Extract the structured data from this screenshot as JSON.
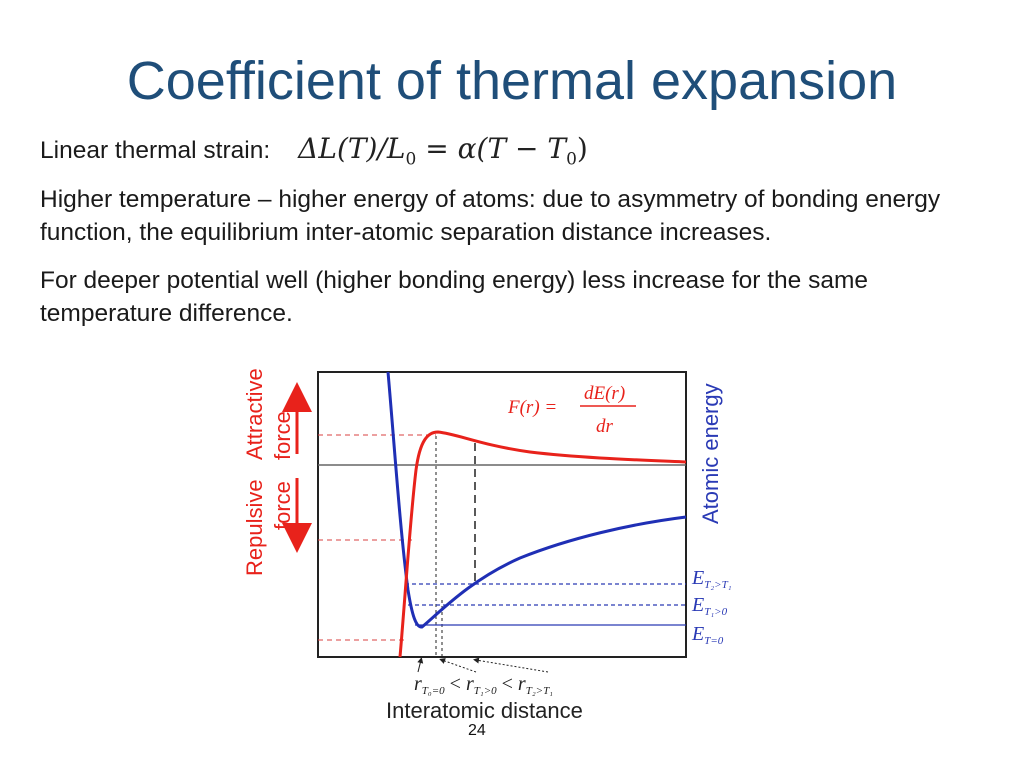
{
  "slide": {
    "title": "Coefficient of thermal expansion",
    "strain_label": "Linear thermal strain:",
    "formula": {
      "lhs": "ΔL(T)/L",
      "lhs_sub": "0",
      "rhs": "= α(T − T",
      "rhs_sub": "0",
      "rhs_end": ")"
    },
    "paragraph_2": "Higher temperature – higher energy of atoms: due to asymmetry of  bonding energy function, the equilibrium inter-atomic separation distance increases.",
    "paragraph_3": "For deeper potential well (higher bonding energy) less increase for the same temperature difference.",
    "page_number": "24"
  },
  "diagram": {
    "left_axis": {
      "attractive": "Attractive",
      "force_top": "force",
      "repulsive": "Repulsive",
      "force_bottom": "force"
    },
    "right_axis_label": "Atomic energy",
    "force_equation": {
      "lhs": "F(r) =",
      "numerator": "dE(r)",
      "denominator": "dr"
    },
    "energy_levels": [
      {
        "main": "E",
        "sub": "T₂>T₁"
      },
      {
        "main": "E",
        "sub": "T₁>0"
      },
      {
        "main": "E",
        "sub": "T=0"
      }
    ],
    "distance_inequality": {
      "r0": "r",
      "r0_sub": "T₀=0",
      "lt1": "<",
      "r1": "r",
      "r1_sub": "T₁>0",
      "lt2": "<",
      "r2": "r",
      "r2_sub": "T₂>T₁"
    },
    "x_axis_label": "Interatomic distance",
    "colors": {
      "force_curve": "#e8221b",
      "energy_curve": "#1f2fb5",
      "title": "#1f4e79"
    }
  }
}
